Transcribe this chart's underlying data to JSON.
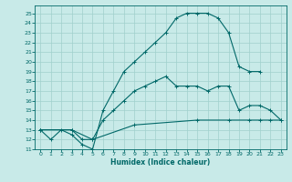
{
  "title": "",
  "xlabel": "Humidex (Indice chaleur)",
  "bg_color": "#c8eae8",
  "grid_color": "#a0d0cc",
  "line_color": "#006868",
  "xlim": [
    -0.5,
    23.5
  ],
  "ylim": [
    11,
    25.8
  ],
  "yticks": [
    11,
    12,
    13,
    14,
    15,
    16,
    17,
    18,
    19,
    20,
    21,
    22,
    23,
    24,
    25
  ],
  "xticks": [
    0,
    1,
    2,
    3,
    4,
    5,
    6,
    7,
    8,
    9,
    10,
    11,
    12,
    13,
    14,
    15,
    16,
    17,
    18,
    19,
    20,
    21,
    22,
    23
  ],
  "line1_x": [
    0,
    1,
    2,
    3,
    4,
    5,
    6,
    7,
    8,
    9,
    10,
    11,
    12,
    13,
    14,
    15,
    16,
    17,
    18,
    19,
    20,
    21
  ],
  "line1_y": [
    13,
    12,
    13,
    12.5,
    11.5,
    11,
    15,
    17,
    19,
    20,
    21,
    22,
    23,
    24.5,
    25,
    25,
    25,
    24.5,
    23,
    19.5,
    19,
    19
  ],
  "line2_x": [
    0,
    3,
    4,
    5,
    6,
    7,
    8,
    9,
    10,
    11,
    12,
    13,
    14,
    15,
    16,
    17,
    18,
    19,
    20,
    21,
    22,
    23
  ],
  "line2_y": [
    13,
    13,
    12,
    12,
    14,
    15,
    16,
    17,
    17.5,
    18,
    18.5,
    17.5,
    17.5,
    17.5,
    17,
    17.5,
    17.5,
    15,
    15.5,
    15.5,
    15,
    14
  ],
  "line3_x": [
    0,
    3,
    5,
    9,
    15,
    18,
    20,
    21,
    22,
    23
  ],
  "line3_y": [
    13,
    13,
    12,
    13.5,
    14,
    14,
    14,
    14,
    14,
    14
  ]
}
